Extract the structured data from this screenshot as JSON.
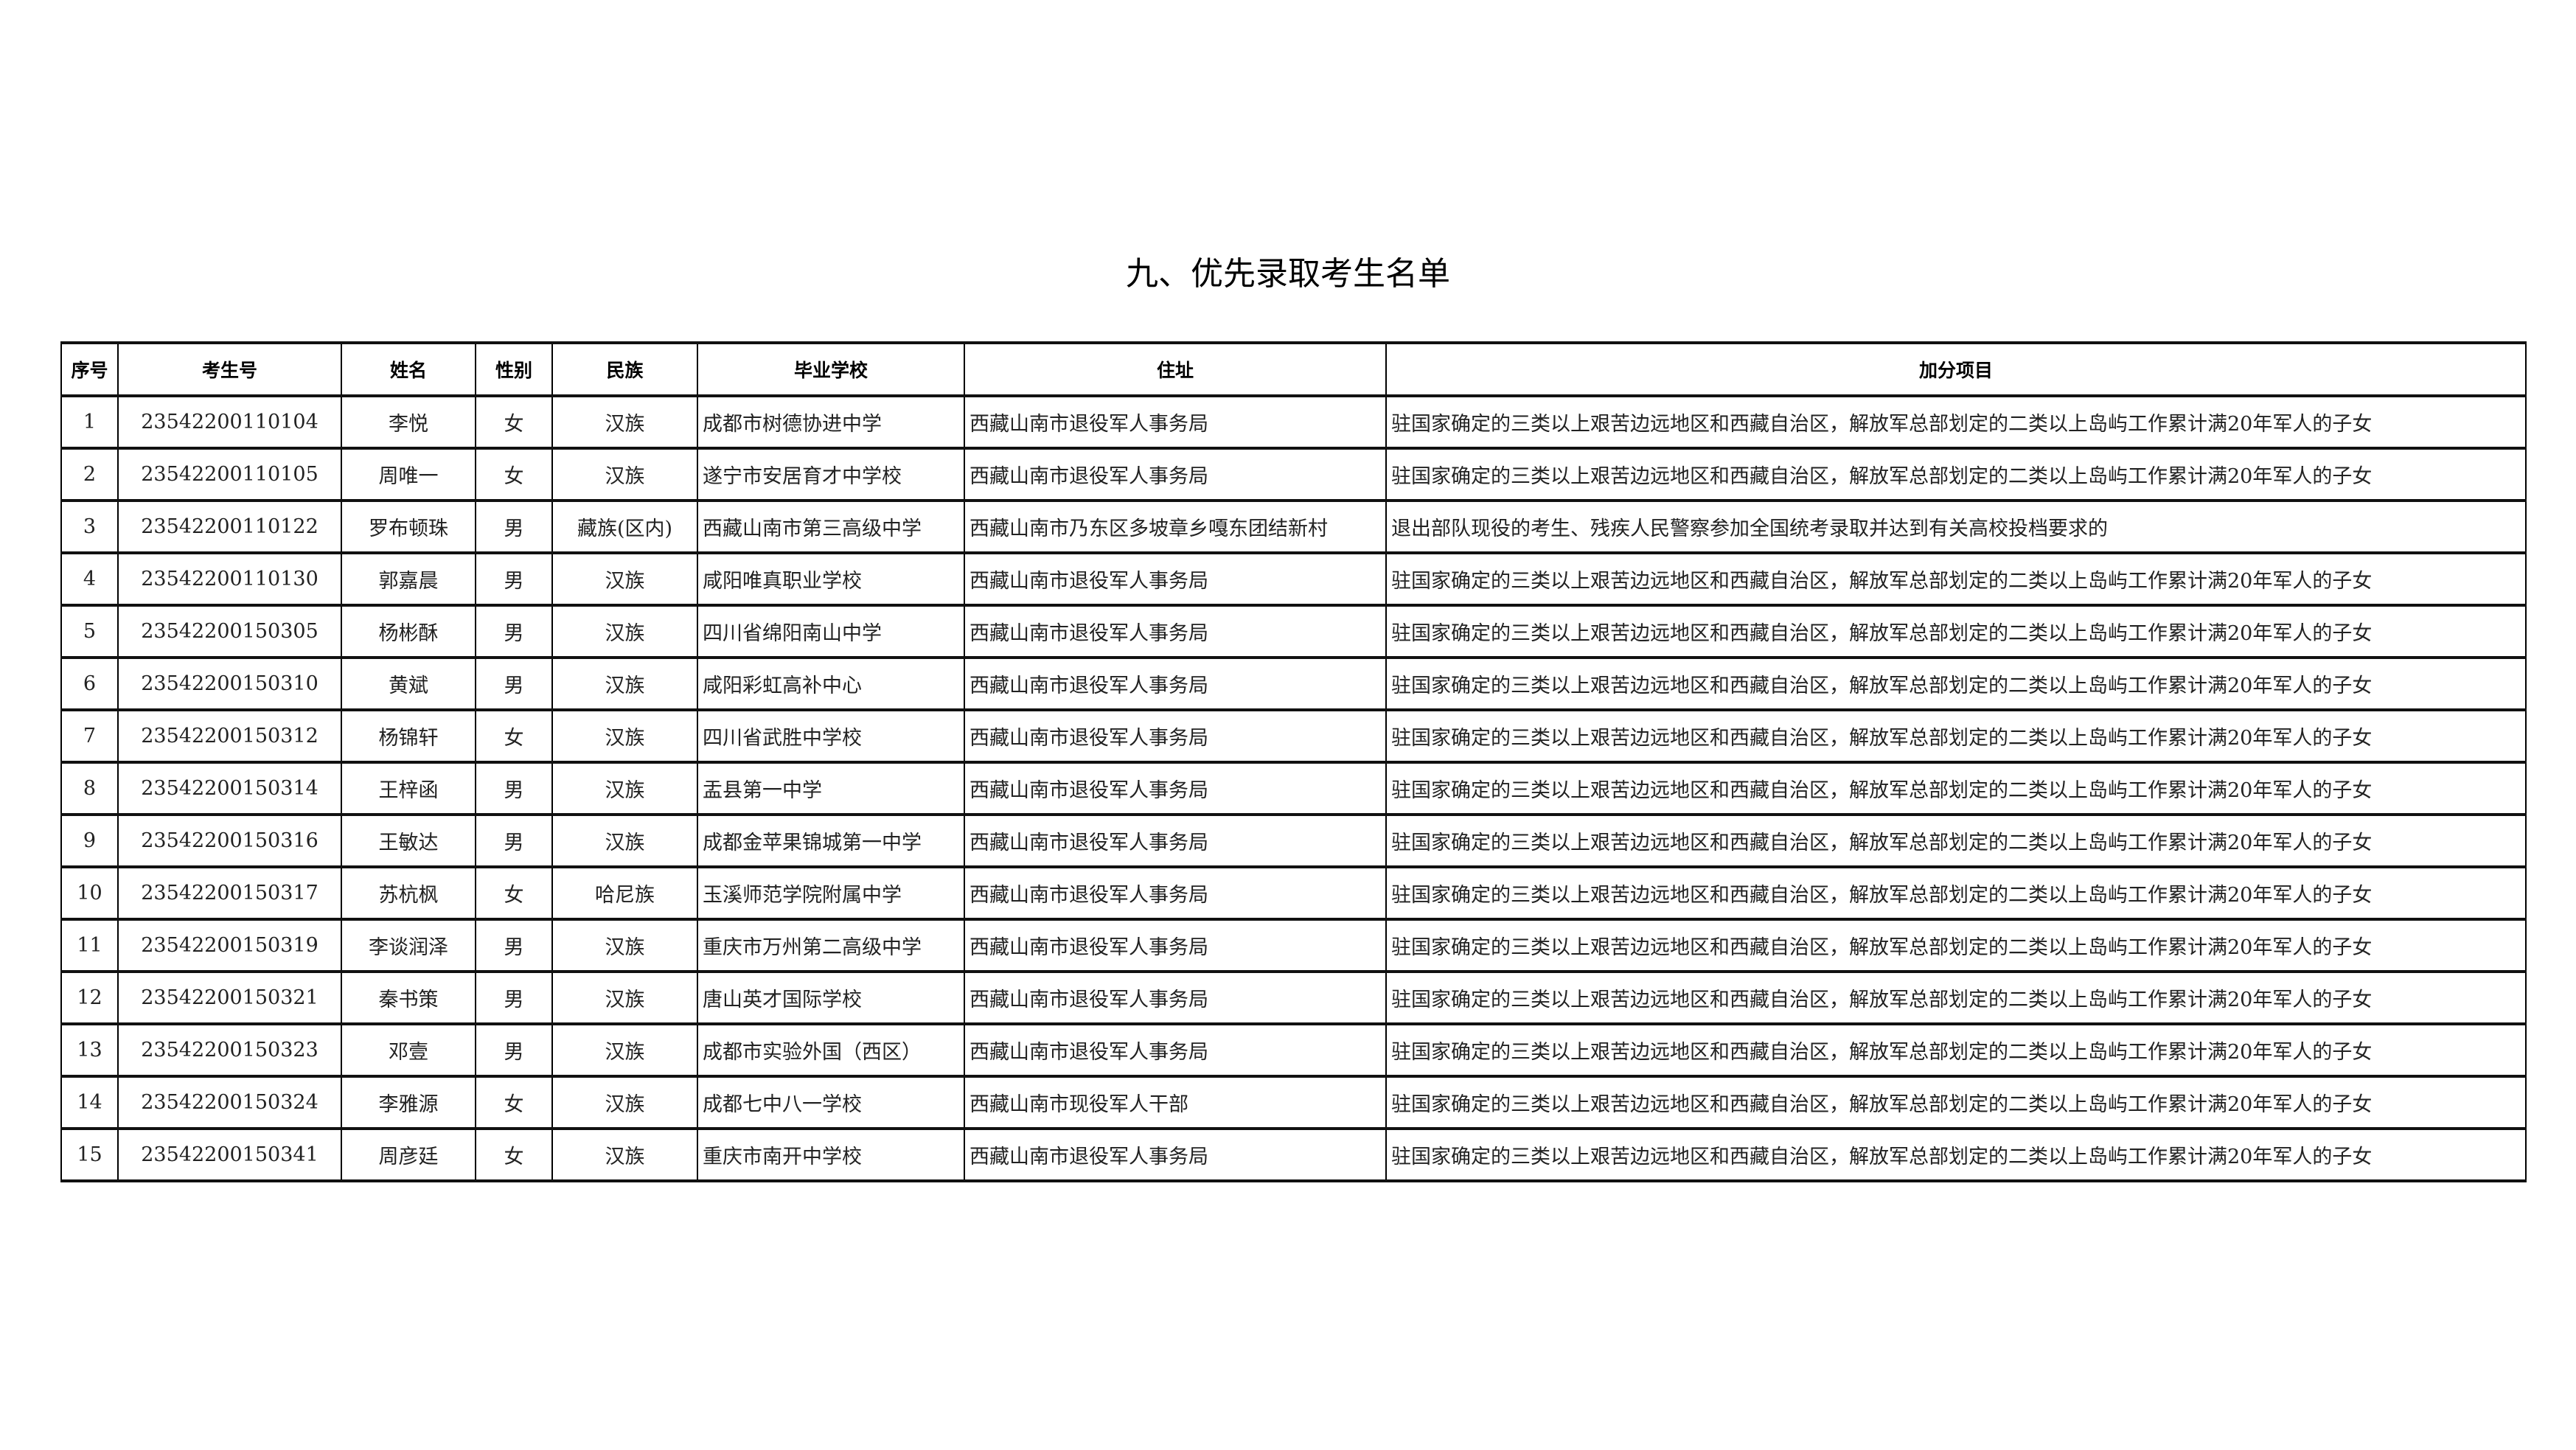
{
  "title": "九、优先录取考生名单",
  "columns": [
    "序号",
    "考生号",
    "姓名",
    "性别",
    "民族",
    "毕业学校",
    "住址",
    "加分项目"
  ],
  "rows": [
    [
      "1",
      "23542200110104",
      "李悦",
      "女",
      "汉族",
      "成都市树德协进中学",
      "西藏山南市退役军人事务局",
      "驻国家确定的三类以上艰苦边远地区和西藏自治区，解放军总部划定的二类以上岛屿工作累计满20年军人的子女"
    ],
    [
      "2",
      "23542200110105",
      "周唯一",
      "女",
      "汉族",
      "遂宁市安居育才中学校",
      "西藏山南市退役军人事务局",
      "驻国家确定的三类以上艰苦边远地区和西藏自治区，解放军总部划定的二类以上岛屿工作累计满20年军人的子女"
    ],
    [
      "3",
      "23542200110122",
      "罗布顿珠",
      "男",
      "藏族(区内)",
      "西藏山南市第三高级中学",
      "西藏山南市乃东区多坡章乡嘎东团结新村",
      "退出部队现役的考生、残疾人民警察参加全国统考录取并达到有关高校投档要求的"
    ],
    [
      "4",
      "23542200110130",
      "郭嘉晨",
      "男",
      "汉族",
      "咸阳唯真职业学校",
      "西藏山南市退役军人事务局",
      "驻国家确定的三类以上艰苦边远地区和西藏自治区，解放军总部划定的二类以上岛屿工作累计满20年军人的子女"
    ],
    [
      "5",
      "23542200150305",
      "杨彬酥",
      "男",
      "汉族",
      "四川省绵阳南山中学",
      "西藏山南市退役军人事务局",
      "驻国家确定的三类以上艰苦边远地区和西藏自治区，解放军总部划定的二类以上岛屿工作累计满20年军人的子女"
    ],
    [
      "6",
      "23542200150310",
      "黄斌",
      "男",
      "汉族",
      "咸阳彩虹高补中心",
      "西藏山南市退役军人事务局",
      "驻国家确定的三类以上艰苦边远地区和西藏自治区，解放军总部划定的二类以上岛屿工作累计满20年军人的子女"
    ],
    [
      "7",
      "23542200150312",
      "杨锦轩",
      "女",
      "汉族",
      "四川省武胜中学校",
      "西藏山南市退役军人事务局",
      "驻国家确定的三类以上艰苦边远地区和西藏自治区，解放军总部划定的二类以上岛屿工作累计满20年军人的子女"
    ],
    [
      "8",
      "23542200150314",
      "王梓函",
      "男",
      "汉族",
      "盂县第一中学",
      "西藏山南市退役军人事务局",
      "驻国家确定的三类以上艰苦边远地区和西藏自治区，解放军总部划定的二类以上岛屿工作累计满20年军人的子女"
    ],
    [
      "9",
      "23542200150316",
      "王敏达",
      "男",
      "汉族",
      "成都金苹果锦城第一中学",
      "西藏山南市退役军人事务局",
      "驻国家确定的三类以上艰苦边远地区和西藏自治区，解放军总部划定的二类以上岛屿工作累计满20年军人的子女"
    ],
    [
      "10",
      "23542200150317",
      "苏杭枫",
      "女",
      "哈尼族",
      "玉溪师范学院附属中学",
      "西藏山南市退役军人事务局",
      "驻国家确定的三类以上艰苦边远地区和西藏自治区，解放军总部划定的二类以上岛屿工作累计满20年军人的子女"
    ],
    [
      "11",
      "23542200150319",
      "李谈润泽",
      "男",
      "汉族",
      "重庆市万州第二高级中学",
      "西藏山南市退役军人事务局",
      "驻国家确定的三类以上艰苦边远地区和西藏自治区，解放军总部划定的二类以上岛屿工作累计满20年军人的子女"
    ],
    [
      "12",
      "23542200150321",
      "秦书策",
      "男",
      "汉族",
      "唐山英才国际学校",
      "西藏山南市退役军人事务局",
      "驻国家确定的三类以上艰苦边远地区和西藏自治区，解放军总部划定的二类以上岛屿工作累计满20年军人的子女"
    ],
    [
      "13",
      "23542200150323",
      "邓壹",
      "男",
      "汉族",
      "成都市实验外国（西区）",
      "西藏山南市退役军人事务局",
      "驻国家确定的三类以上艰苦边远地区和西藏自治区，解放军总部划定的二类以上岛屿工作累计满20年军人的子女"
    ],
    [
      "14",
      "23542200150324",
      "李雅源",
      "女",
      "汉族",
      "成都七中八一学校",
      "西藏山南市现役军人干部",
      "驻国家确定的三类以上艰苦边远地区和西藏自治区，解放军总部划定的二类以上岛屿工作累计满20年军人的子女"
    ],
    [
      "15",
      "23542200150341",
      "周彦廷",
      "女",
      "汉族",
      "重庆市南开中学校",
      "西藏山南市退役军人事务局",
      "驻国家确定的三类以上艰苦边远地区和西藏自治区，解放军总部划定的二类以上岛屿工作累计满20年军人的子女"
    ]
  ]
}
